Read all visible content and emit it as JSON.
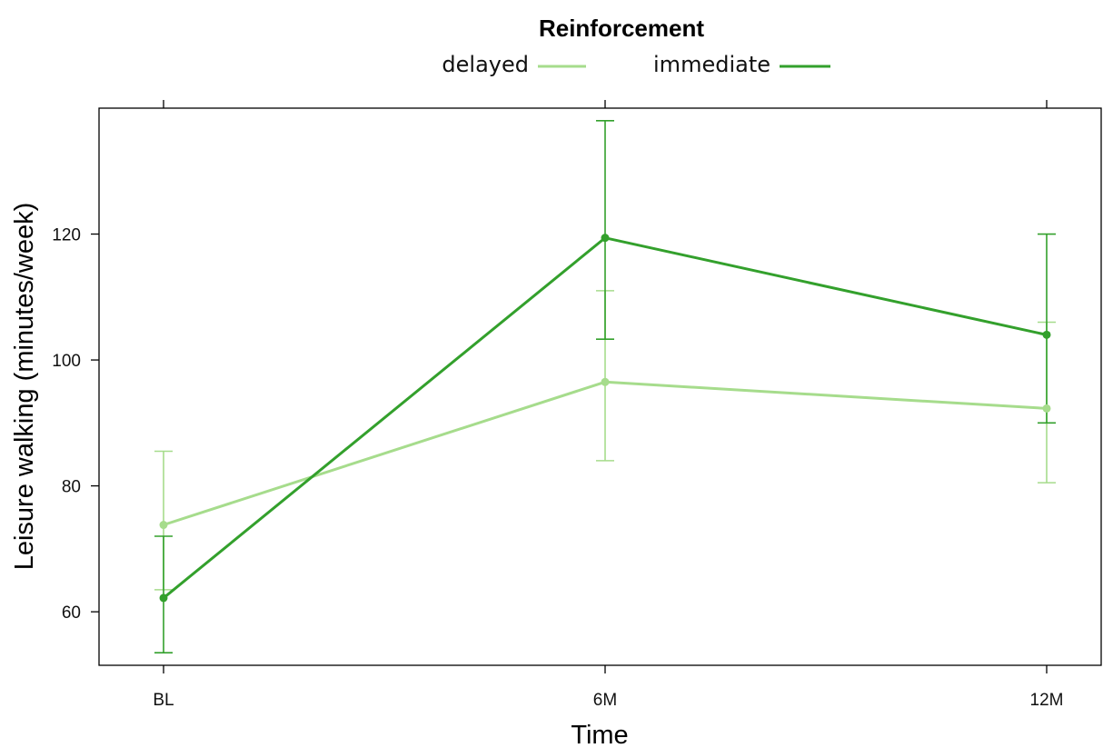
{
  "chart_data": {
    "type": "line",
    "legend_title": "Reinforcement",
    "legend_position": "top",
    "xlabel": "Time",
    "ylabel": "Leisure walking (minutes/week)",
    "categories": [
      "BL",
      "6M",
      "12M"
    ],
    "yticks": [
      60,
      80,
      100,
      120
    ],
    "ylim": [
      51.5,
      140
    ],
    "grid": false,
    "series": [
      {
        "name": "delayed",
        "color": "#a6dc8c",
        "values": [
          73.8,
          96.5,
          92.3
        ],
        "lower": [
          63.5,
          84.0,
          80.5
        ],
        "upper": [
          85.5,
          111.0,
          106.0
        ]
      },
      {
        "name": "immediate",
        "color": "#33a02c",
        "values": [
          62.2,
          119.4,
          104.0
        ],
        "lower": [
          53.5,
          103.3,
          90.0
        ],
        "upper": [
          72.0,
          138.0,
          120.0
        ]
      }
    ]
  }
}
